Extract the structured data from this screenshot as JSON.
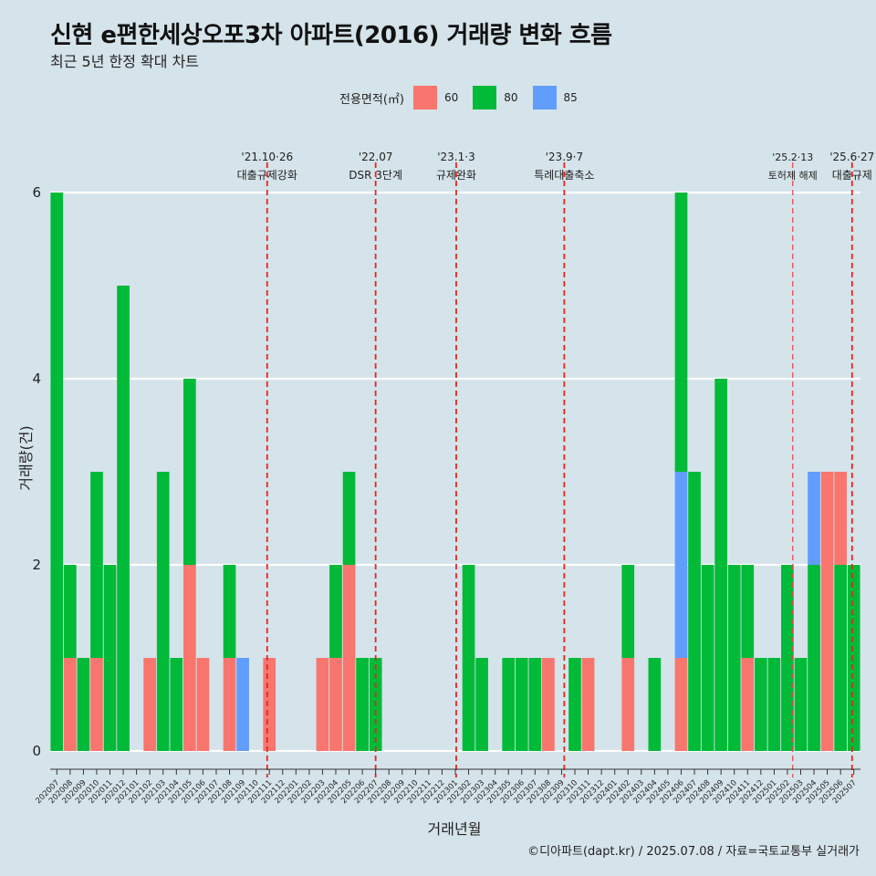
{
  "title": "신현 e편한세상오포3차 아파트(2016) 거래량 변화 흐름",
  "subtitle": "최근 5년 한정 확대 차트",
  "caption": "©디아파트(dapt.kr) / 2025.07.08 / 자료=국토교통부 실거래가",
  "legend": {
    "title": "전용면적(㎡)",
    "items": [
      {
        "label": "60",
        "color": "#f8766d"
      },
      {
        "label": "80",
        "color": "#00ba38"
      },
      {
        "label": "85",
        "color": "#619cff"
      }
    ]
  },
  "chart_data": {
    "type": "bar",
    "stacked": true,
    "xlabel": "거래년월",
    "ylabel": "거래량(건)",
    "ylim": [
      0,
      6
    ],
    "yticks": [
      0,
      2,
      4,
      6
    ],
    "grid": "horizontal",
    "legend_position": "top",
    "months": [
      "202007",
      "202008",
      "202009",
      "202010",
      "202011",
      "202012",
      "202101",
      "202102",
      "202103",
      "202104",
      "202105",
      "202106",
      "202107",
      "202108",
      "202109",
      "202110",
      "202111",
      "202112",
      "202201",
      "202202",
      "202203",
      "202204",
      "202205",
      "202206",
      "202207",
      "202208",
      "202209",
      "202210",
      "202211",
      "202212",
      "202301",
      "202302",
      "202303",
      "202304",
      "202305",
      "202306",
      "202307",
      "202308",
      "202309",
      "202310",
      "202311",
      "202312",
      "202401",
      "202402",
      "202403",
      "202404",
      "202405",
      "202406",
      "202407",
      "202408",
      "202409",
      "202410",
      "202411",
      "202412",
      "202501",
      "202502",
      "202503",
      "202504",
      "202505",
      "202506",
      "202507"
    ],
    "bars": [
      {
        "month": "202007",
        "series": "80",
        "value": 6
      },
      {
        "month": "202008",
        "series": "60",
        "value": 1
      },
      {
        "month": "202008",
        "series": "80",
        "value": 1
      },
      {
        "month": "202009",
        "series": "80",
        "value": 1
      },
      {
        "month": "202010",
        "series": "60",
        "value": 1
      },
      {
        "month": "202010",
        "series": "80",
        "value": 2
      },
      {
        "month": "202011",
        "series": "80",
        "value": 2
      },
      {
        "month": "202012",
        "series": "80",
        "value": 5
      },
      {
        "month": "202102",
        "series": "60",
        "value": 1
      },
      {
        "month": "202103",
        "series": "80",
        "value": 3
      },
      {
        "month": "202104",
        "series": "80",
        "value": 1
      },
      {
        "month": "202105",
        "series": "60",
        "value": 2
      },
      {
        "month": "202105",
        "series": "80",
        "value": 2
      },
      {
        "month": "202106",
        "series": "60",
        "value": 1
      },
      {
        "month": "202108",
        "series": "60",
        "value": 1
      },
      {
        "month": "202108",
        "series": "80",
        "value": 1
      },
      {
        "month": "202109",
        "series": "85",
        "value": 1
      },
      {
        "month": "202111",
        "series": "60",
        "value": 1
      },
      {
        "month": "202203",
        "series": "60",
        "value": 1
      },
      {
        "month": "202204",
        "series": "60",
        "value": 1
      },
      {
        "month": "202204",
        "series": "80",
        "value": 1
      },
      {
        "month": "202205",
        "series": "60",
        "value": 2
      },
      {
        "month": "202205",
        "series": "80",
        "value": 1
      },
      {
        "month": "202206",
        "series": "80",
        "value": 1
      },
      {
        "month": "202207",
        "series": "80",
        "value": 1
      },
      {
        "month": "202302",
        "series": "80",
        "value": 2
      },
      {
        "month": "202303",
        "series": "80",
        "value": 1
      },
      {
        "month": "202305",
        "series": "80",
        "value": 1
      },
      {
        "month": "202306",
        "series": "80",
        "value": 1
      },
      {
        "month": "202307",
        "series": "80",
        "value": 1
      },
      {
        "month": "202308",
        "series": "60",
        "value": 1
      },
      {
        "month": "202310",
        "series": "80",
        "value": 1
      },
      {
        "month": "202311",
        "series": "60",
        "value": 1
      },
      {
        "month": "202402",
        "series": "60",
        "value": 1
      },
      {
        "month": "202402",
        "series": "80",
        "value": 1
      },
      {
        "month": "202404",
        "series": "80",
        "value": 1
      },
      {
        "month": "202406",
        "series": "60",
        "value": 1
      },
      {
        "month": "202406",
        "series": "85",
        "value": 2
      },
      {
        "month": "202406",
        "series": "80",
        "value": 3
      },
      {
        "month": "202407",
        "series": "80",
        "value": 3
      },
      {
        "month": "202408",
        "series": "80",
        "value": 2
      },
      {
        "month": "202409",
        "series": "80",
        "value": 4
      },
      {
        "month": "202410",
        "series": "80",
        "value": 2
      },
      {
        "month": "202411",
        "series": "60",
        "value": 1
      },
      {
        "month": "202411",
        "series": "80",
        "value": 1
      },
      {
        "month": "202412",
        "series": "80",
        "value": 1
      },
      {
        "month": "202501",
        "series": "80",
        "value": 1
      },
      {
        "month": "202502",
        "series": "80",
        "value": 2
      },
      {
        "month": "202503",
        "series": "80",
        "value": 1
      },
      {
        "month": "202504",
        "series": "80",
        "value": 2
      },
      {
        "month": "202504",
        "series": "85",
        "value": 1
      },
      {
        "month": "202505",
        "series": "60",
        "value": 3
      },
      {
        "month": "202506",
        "series": "80",
        "value": 2
      },
      {
        "month": "202506",
        "series": "60",
        "value": 1
      },
      {
        "month": "202507",
        "series": "80",
        "value": 2
      }
    ],
    "events": [
      {
        "date": "2021-10-26",
        "label": "'21.10·26",
        "desc": "대출규제강화"
      },
      {
        "date": "2022-07-01",
        "label": "'22.07",
        "desc": "DSR 3단계"
      },
      {
        "date": "2023-01-03",
        "label": "'23.1·3",
        "desc": "규제완화"
      },
      {
        "date": "2023-09-07",
        "label": "'23.9·7",
        "desc": "특례대출축소"
      },
      {
        "date": "2025-02-13",
        "label": "'25.2·13",
        "desc": "토허제 해제"
      },
      {
        "date": "2025-06-27",
        "label": "'25.6·27",
        "desc": "대출규제"
      }
    ]
  }
}
